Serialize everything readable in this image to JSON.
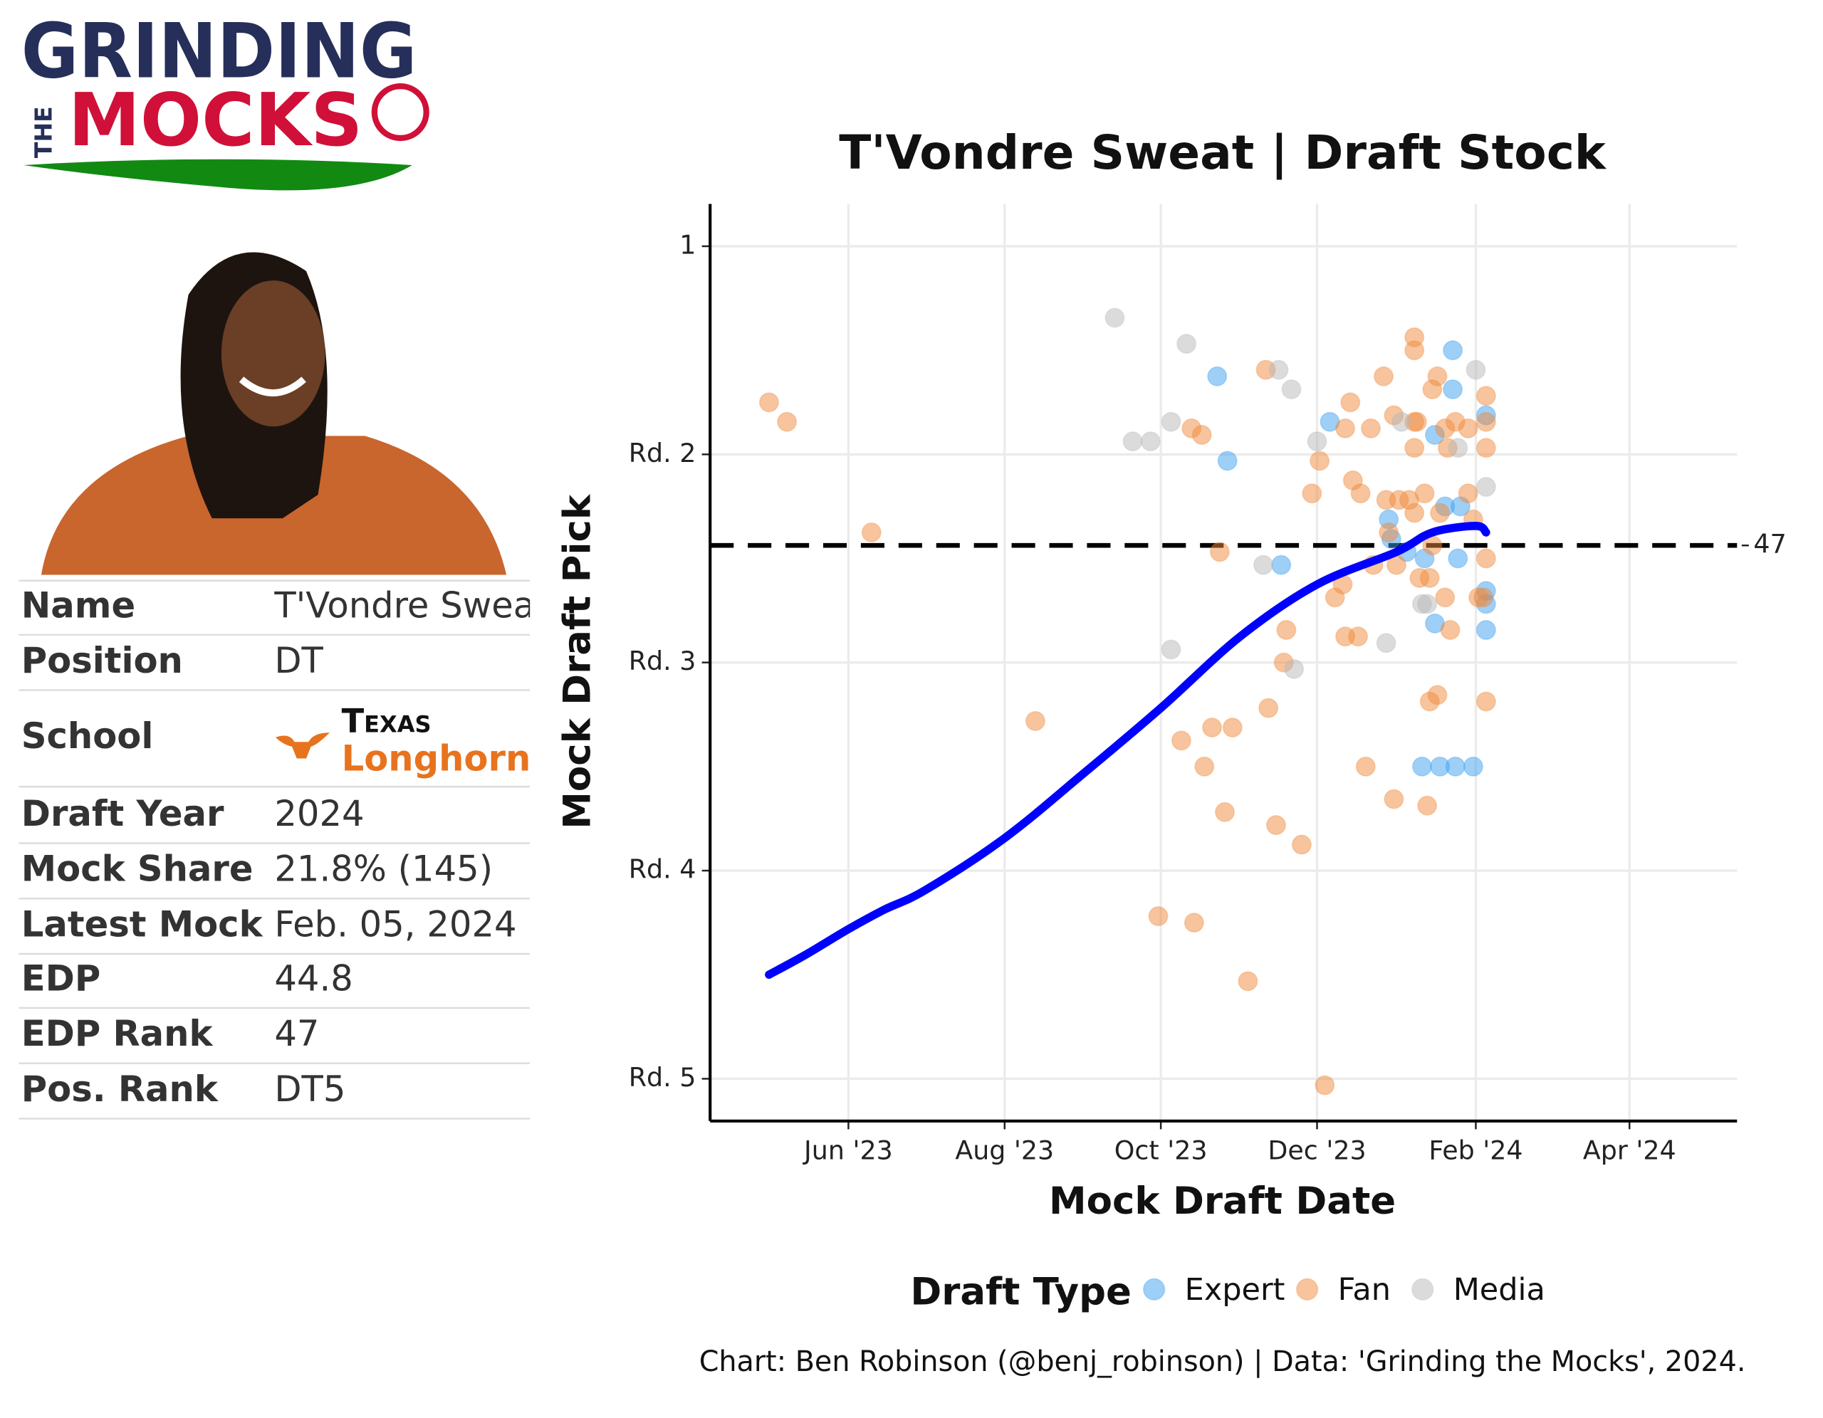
{
  "logo": {
    "line1": "GRINDING",
    "small": "THE",
    "line2": "MOCKS"
  },
  "profile": {
    "rows": [
      {
        "label": "Name",
        "value": "T'Vondre Sweat"
      },
      {
        "label": "Position",
        "value": "DT"
      },
      {
        "label": "School",
        "value": [
          "Texas",
          "Longhorns"
        ]
      },
      {
        "label": "Draft Year",
        "value": "2024"
      },
      {
        "label": "Mock Share",
        "value": "21.8% (145)"
      },
      {
        "label": "Latest Mock",
        "value": "Feb. 05, 2024"
      },
      {
        "label": "EDP",
        "value": "44.8"
      },
      {
        "label": "EDP Rank",
        "value": "47"
      },
      {
        "label": "Pos. Rank",
        "value": "DT5"
      }
    ]
  },
  "chart_data": {
    "type": "scatter",
    "title": "T'Vondre Sweat | Draft Stock",
    "x_label": "Mock Draft Date",
    "y_label": "Mock Draft Pick",
    "xlim": [
      "2023-04-08",
      "2024-05-13"
    ],
    "xticks": [
      {
        "value": "2023-06-01",
        "label": "Jun '23"
      },
      {
        "value": "2023-08-01",
        "label": "Aug '23"
      },
      {
        "value": "2023-10-01",
        "label": "Oct '23"
      },
      {
        "value": "2023-12-01",
        "label": "Dec '23"
      },
      {
        "value": "2024-02-01",
        "label": "Feb '24"
      },
      {
        "value": "2024-04-01",
        "label": "Apr '24"
      }
    ],
    "ylim": [
      -5.5,
      135.5
    ],
    "y_reversed": true,
    "yticks": [
      1,
      {
        "value": 33,
        "label": "Rd. 2"
      },
      {
        "value": 65,
        "label": "Rd. 3"
      },
      {
        "value": 97,
        "label": "Rd. 4"
      },
      {
        "value": 129,
        "label": "Rd. 5"
      }
    ],
    "grid": true,
    "legend_title": "Draft Type",
    "series": [
      {
        "name": "Expert",
        "color": "#3d9ff0",
        "x": [
          "2023-10-23",
          "2023-10-27",
          "2023-11-17",
          "2023-12-06",
          "2023-12-29",
          "2023-12-30",
          "2024-01-05",
          "2024-01-11",
          "2024-01-12",
          "2024-01-16",
          "2024-01-16",
          "2024-01-18",
          "2024-01-20",
          "2024-01-23",
          "2024-01-23",
          "2024-01-24",
          "2024-01-25",
          "2024-01-31",
          "2024-02-05",
          "2024-02-05",
          "2024-02-05",
          "2024-02-05",
          "2024-01-26"
        ],
        "values": [
          21,
          34,
          50,
          28,
          43,
          46,
          48,
          81,
          49,
          59,
          30,
          81,
          41,
          17,
          23,
          81,
          49,
          81,
          27,
          54,
          56,
          60,
          41
        ]
      },
      {
        "name": "Fan",
        "color": "#f08a3c",
        "x": [
          "2023-05-01",
          "2023-05-08",
          "2023-06-10",
          "2023-08-13",
          "2023-09-30",
          "2023-10-14",
          "2023-10-09",
          "2023-10-13",
          "2023-10-17",
          "2023-10-18",
          "2023-10-21",
          "2023-10-24",
          "2023-10-26",
          "2023-10-29",
          "2023-11-04",
          "2023-11-11",
          "2023-11-12",
          "2023-11-15",
          "2023-11-18",
          "2023-11-19",
          "2023-11-25",
          "2023-11-29",
          "2023-12-02",
          "2023-12-04",
          "2023-12-08",
          "2023-12-11",
          "2023-12-14",
          "2023-12-12",
          "2023-12-15",
          "2023-12-18",
          "2023-12-12",
          "2023-12-17",
          "2023-12-20",
          "2023-12-22",
          "2023-12-23",
          "2023-12-27",
          "2023-12-28",
          "2023-12-29",
          "2023-12-31",
          "2023-12-31",
          "2024-01-01",
          "2024-01-02",
          "2024-01-08",
          "2024-01-08",
          "2024-01-06",
          "2024-01-08",
          "2024-01-09",
          "2024-01-08",
          "2024-01-10",
          "2024-01-12",
          "2024-01-13",
          "2024-01-14",
          "2024-01-14",
          "2024-01-15",
          "2024-01-17",
          "2024-01-17",
          "2024-01-18",
          "2024-01-20",
          "2024-01-20",
          "2024-01-21",
          "2024-01-22",
          "2024-01-24",
          "2024-01-29",
          "2024-01-29",
          "2024-01-31",
          "2024-02-02",
          "2024-02-04",
          "2024-02-05",
          "2024-02-05",
          "2024-02-05",
          "2024-02-05",
          "2024-02-05",
          "2024-01-15",
          "2024-01-08"
        ],
        "values": [
          25,
          28,
          45,
          74,
          104,
          105,
          77,
          29,
          30,
          81,
          75,
          48,
          88,
          75,
          114,
          20,
          72,
          90,
          65,
          60,
          93,
          39,
          34,
          130,
          55,
          53,
          25,
          29,
          37,
          39,
          61,
          61,
          81,
          29,
          50,
          21,
          40,
          45,
          27,
          86,
          50,
          40,
          15,
          17,
          40,
          28,
          28,
          32,
          52,
          39,
          87,
          52,
          71,
          23,
          70,
          21,
          42,
          55,
          29,
          32,
          60,
          28,
          39,
          29,
          43,
          55,
          55,
          24,
          28,
          32,
          49,
          71,
          47,
          42
        ]
      },
      {
        "name": "Media",
        "color": "#b8b8b8",
        "x": [
          "2023-09-13",
          "2023-10-11",
          "2023-09-20",
          "2023-09-27",
          "2023-10-05",
          "2023-10-05",
          "2023-11-16",
          "2023-11-21",
          "2023-11-10",
          "2023-11-22",
          "2023-12-01",
          "2023-12-28",
          "2024-01-03",
          "2024-01-11",
          "2024-01-13",
          "2024-01-25",
          "2024-02-01",
          "2024-02-05"
        ],
        "values": [
          12,
          16,
          31,
          31,
          28,
          63,
          20,
          23,
          50,
          66,
          31,
          62,
          28,
          56,
          56,
          32,
          20,
          38
        ]
      }
    ],
    "trend": {
      "color": "#0000ff",
      "x": [
        "2023-05-01",
        "2023-05-15",
        "2023-06-01",
        "2023-06-15",
        "2023-07-01",
        "2023-08-01",
        "2023-09-01",
        "2023-10-01",
        "2023-11-01",
        "2023-12-01",
        "2024-01-01",
        "2024-01-15",
        "2024-02-01",
        "2024-02-05"
      ],
      "values": [
        113,
        110,
        106,
        103,
        100,
        92,
        82,
        72,
        61,
        53,
        48,
        45,
        44,
        45
      ]
    },
    "reference_line": {
      "value": 47
    },
    "caption": "Chart: Ben Robinson (@benj_robinson) | Data: 'Grinding the Mocks', 2024."
  }
}
